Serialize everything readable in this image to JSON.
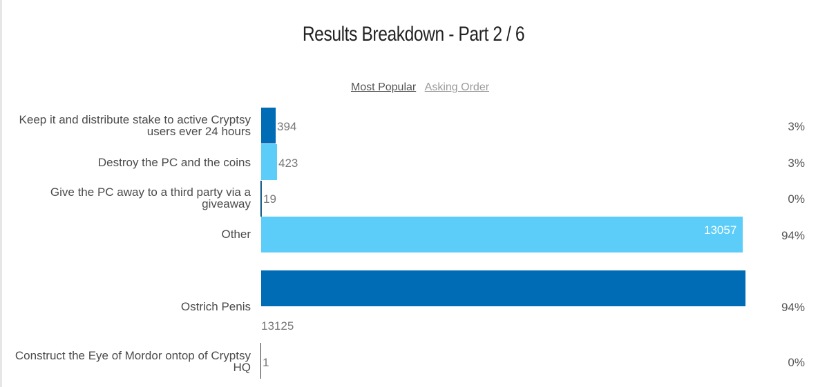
{
  "title": "Results Breakdown - Part 2 / 6",
  "sort": {
    "most_popular": "Most Popular",
    "asking_order": "Asking Order"
  },
  "colors": {
    "dark": "#006cb6",
    "light": "#5bcdf8"
  },
  "chart_data": {
    "type": "bar",
    "orientation": "horizontal",
    "title": "Results Breakdown - Part 2 / 6",
    "categories": [
      "Keep it and distribute stake to active Cryptsy users ever 24 hours",
      "Destroy the PC and the coins",
      "Give the PC away to a third party via a giveaway",
      "Other",
      "Ostrich Penis",
      "Construct the Eye of Mordor ontop of Cryptsy HQ"
    ],
    "values": [
      394,
      423,
      19,
      13057,
      13125,
      1
    ],
    "percent_labels": [
      "3%",
      "3%",
      "0%",
      "94%",
      "94%",
      "0%"
    ],
    "xlim": [
      0,
      13125
    ],
    "grid": false,
    "legend": "none"
  }
}
